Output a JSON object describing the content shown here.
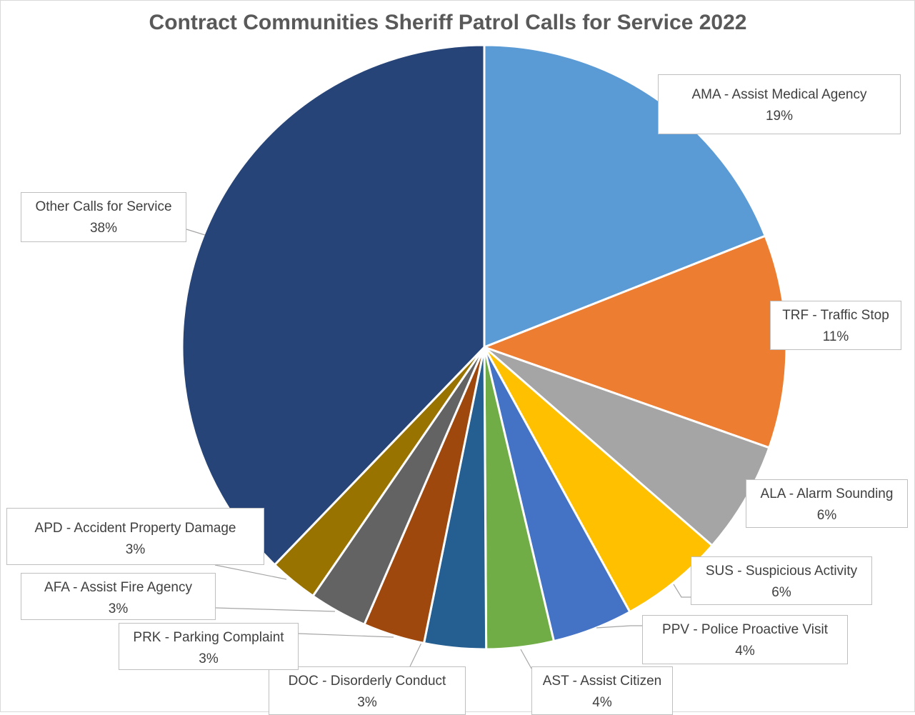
{
  "chart_data": {
    "type": "pie",
    "title": "Contract Communities Sheriff Patrol Calls for Service 2022",
    "start_angle_deg": 0,
    "direction": "clockwise",
    "slices": [
      {
        "label": "AMA - Assist Medical Agency",
        "pct_label": "19%",
        "value": 19.0,
        "color": "#5b9bd5"
      },
      {
        "label": "TRF - Traffic Stop",
        "pct_label": "11%",
        "value": 11.4,
        "color": "#ed7d31"
      },
      {
        "label": "ALA - Alarm Sounding",
        "pct_label": "6%",
        "value": 6.0,
        "color": "#a5a5a5"
      },
      {
        "label": "SUS - Suspicious Activity",
        "pct_label": "6%",
        "value": 5.6,
        "color": "#ffc000"
      },
      {
        "label": "PPV - Police Proactive Visit",
        "pct_label": "4%",
        "value": 4.3,
        "color": "#4472c4"
      },
      {
        "label": "AST - Assist Citizen",
        "pct_label": "4%",
        "value": 3.6,
        "color": "#70ad47"
      },
      {
        "label": "DOC - Disorderly Conduct",
        "pct_label": "3%",
        "value": 3.3,
        "color": "#255e91"
      },
      {
        "label": "PRK - Parking Complaint",
        "pct_label": "3%",
        "value": 3.3,
        "color": "#9e480e"
      },
      {
        "label": "AFA - Assist Fire Agency",
        "pct_label": "3%",
        "value": 3.1,
        "color": "#636363"
      },
      {
        "label": "APD - Accident Property Damage",
        "pct_label": "3%",
        "value": 2.6,
        "color": "#997300"
      },
      {
        "label": "Other Calls for Service",
        "pct_label": "38%",
        "value": 37.8,
        "color": "#264478"
      }
    ]
  }
}
